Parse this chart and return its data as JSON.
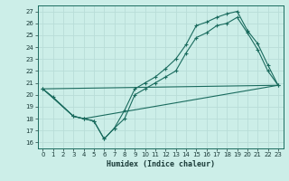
{
  "xlabel": "Humidex (Indice chaleur)",
  "bg_color": "#cceee8",
  "line_color": "#1a6b5e",
  "grid_color": "#b8ddd8",
  "xlim": [
    -0.5,
    23.5
  ],
  "ylim": [
    15.5,
    27.5
  ],
  "xticks": [
    0,
    1,
    2,
    3,
    4,
    5,
    6,
    7,
    8,
    9,
    10,
    11,
    12,
    13,
    14,
    15,
    16,
    17,
    18,
    19,
    20,
    21,
    22,
    23
  ],
  "yticks": [
    16,
    17,
    18,
    19,
    20,
    21,
    22,
    23,
    24,
    25,
    26,
    27
  ],
  "line1_x": [
    0,
    1,
    3,
    4,
    5,
    6,
    7,
    8,
    9,
    10,
    11,
    12,
    13,
    14,
    15,
    16,
    17,
    18,
    19,
    20,
    21,
    22,
    23
  ],
  "line1_y": [
    20.5,
    19.8,
    18.2,
    18.0,
    17.8,
    16.3,
    17.2,
    18.7,
    20.5,
    21.0,
    21.5,
    22.2,
    23.0,
    24.2,
    25.8,
    26.1,
    26.5,
    26.8,
    27.0,
    25.4,
    24.3,
    22.5,
    20.8
  ],
  "line2_x": [
    0,
    3,
    4,
    5,
    6,
    7,
    8,
    9,
    10,
    11,
    12,
    13,
    14,
    15,
    16,
    17,
    18,
    19,
    20,
    21,
    22,
    23
  ],
  "line2_y": [
    20.5,
    18.2,
    18.0,
    17.8,
    16.3,
    17.2,
    18.0,
    20.0,
    20.5,
    21.0,
    21.5,
    22.0,
    23.5,
    24.8,
    25.2,
    25.8,
    26.0,
    26.5,
    25.2,
    23.8,
    22.0,
    20.8
  ],
  "line3_x": [
    0,
    1,
    3,
    4,
    23
  ],
  "line3_y": [
    20.5,
    19.8,
    18.2,
    18.0,
    20.8
  ],
  "line4_x": [
    0,
    23
  ],
  "line4_y": [
    20.5,
    20.8
  ]
}
